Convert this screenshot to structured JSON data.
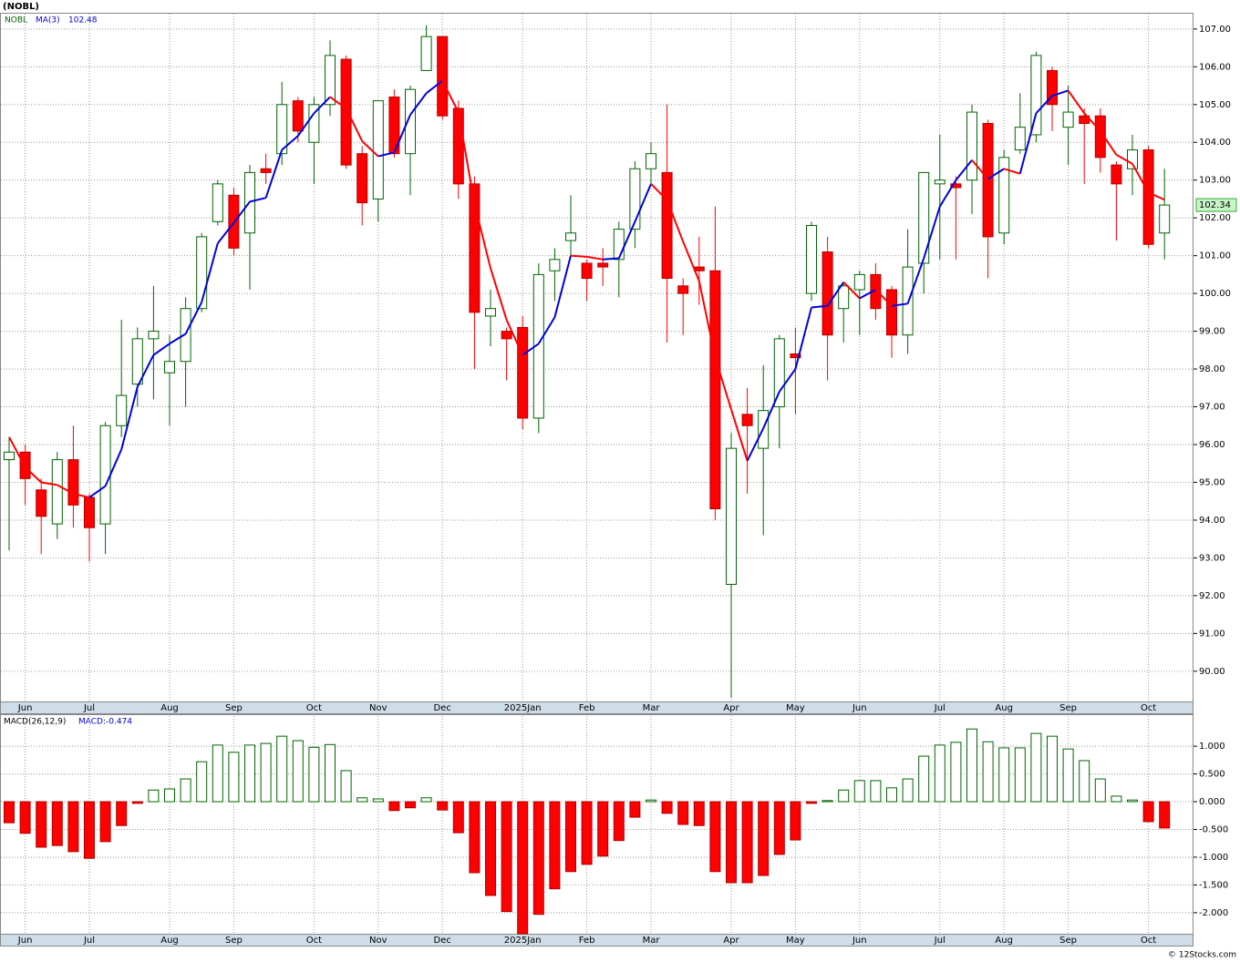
{
  "chart_data": [
    {
      "type": "candlestick",
      "title": "(NOBL)",
      "symbol": "NOBL",
      "categories": [
        null,
        "Jun",
        null,
        null,
        null,
        "Jul",
        null,
        null,
        null,
        null,
        "Aug",
        null,
        null,
        null,
        "Sep",
        null,
        null,
        null,
        null,
        "Oct",
        null,
        null,
        null,
        "Nov",
        null,
        null,
        null,
        "Dec",
        null,
        null,
        null,
        null,
        "2025Jan",
        null,
        null,
        null,
        "Feb",
        null,
        null,
        null,
        "Mar",
        null,
        null,
        null,
        null,
        "Apr",
        null,
        null,
        null,
        "May",
        null,
        null,
        null,
        "Jun",
        null,
        null,
        null,
        null,
        "Jul",
        null,
        null,
        null,
        "Aug",
        null,
        null,
        null,
        "Sep",
        null,
        null,
        null,
        null,
        "Oct",
        null
      ],
      "open": [
        95.6,
        95.8,
        94.8,
        93.9,
        95.6,
        94.6,
        93.9,
        96.5,
        97.6,
        98.8,
        97.9,
        98.2,
        99.6,
        101.9,
        102.6,
        101.6,
        103.3,
        103.7,
        105.1,
        104.0,
        105.0,
        106.2,
        103.7,
        102.5,
        105.2,
        103.7,
        105.9,
        106.8,
        104.9,
        102.9,
        99.4,
        99.0,
        99.1,
        96.7,
        100.6,
        101.4,
        100.8,
        100.8,
        100.9,
        101.7,
        103.3,
        103.2,
        100.2,
        100.7,
        100.6,
        92.3,
        96.8,
        95.9,
        97.0,
        98.4,
        100.0,
        101.1,
        99.6,
        100.1,
        100.5,
        100.1,
        98.9,
        100.8,
        102.9,
        102.9,
        103.0,
        104.5,
        101.6,
        103.8,
        104.2,
        105.9,
        104.4,
        104.7,
        104.7,
        103.4,
        103.3,
        103.8,
        101.6
      ],
      "high": [
        96.2,
        96.0,
        95.1,
        95.8,
        96.5,
        94.7,
        96.6,
        99.3,
        99.1,
        100.2,
        98.9,
        99.9,
        101.6,
        103.0,
        102.8,
        103.4,
        103.7,
        105.6,
        105.2,
        105.2,
        106.7,
        106.3,
        103.9,
        105.1,
        105.4,
        105.5,
        107.1,
        106.8,
        105.1,
        103.1,
        100.1,
        99.1,
        99.4,
        100.8,
        101.2,
        102.6,
        100.9,
        101.2,
        101.9,
        103.5,
        104.0,
        105.0,
        100.4,
        101.5,
        102.3,
        96.3,
        97.5,
        98.1,
        98.9,
        99.1,
        101.9,
        101.5,
        100.3,
        100.6,
        100.8,
        100.2,
        101.7,
        103.2,
        104.2,
        103.1,
        105.0,
        104.6,
        103.8,
        105.3,
        106.4,
        106.0,
        105.5,
        104.9,
        104.9,
        103.5,
        104.2,
        103.9,
        103.3
      ],
      "low": [
        93.2,
        94.4,
        93.1,
        93.5,
        93.8,
        92.9,
        93.1,
        96.2,
        97.0,
        97.2,
        96.5,
        97.0,
        99.5,
        101.8,
        101.0,
        100.1,
        102.9,
        103.4,
        104.0,
        102.9,
        104.7,
        103.3,
        101.8,
        101.9,
        103.6,
        102.6,
        105.9,
        104.6,
        102.5,
        98.0,
        98.6,
        97.7,
        96.4,
        96.3,
        99.8,
        101.0,
        99.8,
        100.2,
        99.9,
        101.2,
        102.9,
        98.7,
        98.9,
        99.7,
        94.0,
        89.3,
        94.7,
        93.6,
        95.9,
        96.8,
        99.8,
        97.7,
        98.7,
        98.9,
        99.3,
        98.3,
        98.4,
        100.0,
        100.9,
        100.9,
        102.1,
        100.4,
        101.3,
        103.7,
        104.0,
        104.3,
        103.4,
        102.9,
        103.2,
        101.4,
        102.6,
        101.2,
        100.9
      ],
      "close": [
        95.8,
        95.1,
        94.1,
        95.6,
        94.4,
        93.8,
        96.5,
        97.3,
        98.8,
        99.0,
        98.2,
        99.6,
        101.5,
        102.9,
        101.2,
        103.2,
        103.2,
        105.0,
        104.3,
        105.0,
        106.3,
        103.4,
        102.4,
        105.1,
        103.7,
        105.4,
        106.8,
        104.7,
        102.9,
        99.5,
        99.6,
        98.8,
        96.7,
        100.5,
        100.9,
        101.6,
        100.4,
        100.7,
        101.7,
        103.3,
        103.7,
        100.4,
        100.0,
        100.6,
        94.3,
        95.9,
        96.5,
        96.9,
        98.8,
        98.3,
        101.8,
        98.9,
        100.2,
        100.5,
        99.6,
        98.9,
        100.7,
        103.2,
        103.0,
        102.8,
        104.8,
        101.5,
        103.6,
        104.4,
        106.3,
        105.0,
        104.8,
        104.5,
        103.6,
        102.9,
        103.8,
        101.3,
        102.34
      ],
      "ma": {
        "name": "MA(3)",
        "color_up": "#0000dd",
        "color_down": "#ff0000",
        "values": [
          96.2,
          95.4,
          95.0,
          94.93,
          94.7,
          94.6,
          94.9,
          95.87,
          97.53,
          98.37,
          98.67,
          98.93,
          99.77,
          101.33,
          101.87,
          102.43,
          102.53,
          103.8,
          104.17,
          104.77,
          105.2,
          104.9,
          104.03,
          103.63,
          103.73,
          104.73,
          105.3,
          105.63,
          104.8,
          102.37,
          100.67,
          99.3,
          98.37,
          98.67,
          99.37,
          101,
          100.97,
          100.9,
          100.93,
          101.9,
          102.9,
          102.47,
          101.37,
          100.33,
          98.3,
          96.93,
          95.57,
          96.43,
          97.4,
          98,
          99.63,
          99.67,
          100.3,
          99.87,
          100.1,
          99.67,
          99.73,
          100.93,
          102.3,
          103,
          103.53,
          103.03,
          103.3,
          103.17,
          104.77,
          105.23,
          105.37,
          104.77,
          104.3,
          103.67,
          103.43,
          102.67,
          102.48
        ]
      },
      "up_color": "#006400",
      "down_color": "#ff0000",
      "ylim": [
        89.2,
        107.43
      ],
      "yticks": [
        {
          "value": 90,
          "label": "90.00"
        },
        {
          "value": 91,
          "label": "91.00"
        },
        {
          "value": 92,
          "label": "92.00"
        },
        {
          "value": 93,
          "label": "93.00"
        },
        {
          "value": 94,
          "label": "94.00"
        },
        {
          "value": 95,
          "label": "95.00"
        },
        {
          "value": 96,
          "label": "96.00"
        },
        {
          "value": 97,
          "label": "97.00"
        },
        {
          "value": 98,
          "label": "98.00"
        },
        {
          "value": 99,
          "label": "99.00"
        },
        {
          "value": 100,
          "label": "100.00"
        },
        {
          "value": 101,
          "label": "101.00"
        },
        {
          "value": 102,
          "label": "102.00"
        },
        {
          "value": 103,
          "label": "103.00"
        },
        {
          "value": 104,
          "label": "104.00"
        },
        {
          "value": 105,
          "label": "105.00"
        },
        {
          "value": 106,
          "label": "106.00"
        },
        {
          "value": 107,
          "label": "107.00"
        }
      ],
      "grid": true
    },
    {
      "type": "bar",
      "title": "MACD(26,12,9)",
      "label": "MACD:-0.474",
      "values": [
        -0.38,
        -0.57,
        -0.82,
        -0.79,
        -0.9,
        -1.02,
        -0.72,
        -0.43,
        -0.03,
        0.21,
        0.23,
        0.41,
        0.72,
        1.02,
        0.89,
        1.02,
        1.05,
        1.18,
        1.1,
        0.98,
        1.03,
        0.56,
        0.07,
        0.05,
        -0.16,
        -0.11,
        0.07,
        -0.15,
        -0.56,
        -1.28,
        -1.69,
        -1.98,
        -2.38,
        -2.03,
        -1.57,
        -1.26,
        -1.13,
        -0.98,
        -0.7,
        -0.28,
        0.03,
        -0.21,
        -0.41,
        -0.43,
        -1.26,
        -1.46,
        -1.46,
        -1.33,
        -0.95,
        -0.69,
        -0.03,
        0.02,
        0.21,
        0.38,
        0.38,
        0.25,
        0.41,
        0.82,
        1.02,
        1.07,
        1.31,
        1.08,
        0.97,
        0.97,
        1.23,
        1.18,
        0.95,
        0.74,
        0.41,
        0.1,
        0.03,
        -0.36,
        -0.474
      ],
      "positive_color": "#006400",
      "negative_color": "#ff0000",
      "ylim": [
        -2.38,
        1.56
      ],
      "yticks": [
        {
          "value": -2,
          "label": "-2.000"
        },
        {
          "value": -1.5,
          "label": "-1.500"
        },
        {
          "value": -1,
          "label": "-1.000"
        },
        {
          "value": -0.5,
          "label": "-0.500"
        },
        {
          "value": 0,
          "label": "0.000"
        },
        {
          "value": 0.5,
          "label": "0.500"
        },
        {
          "value": 1,
          "label": "1.000"
        }
      ],
      "grid": true
    }
  ],
  "footer": "© 12Stocks.com"
}
